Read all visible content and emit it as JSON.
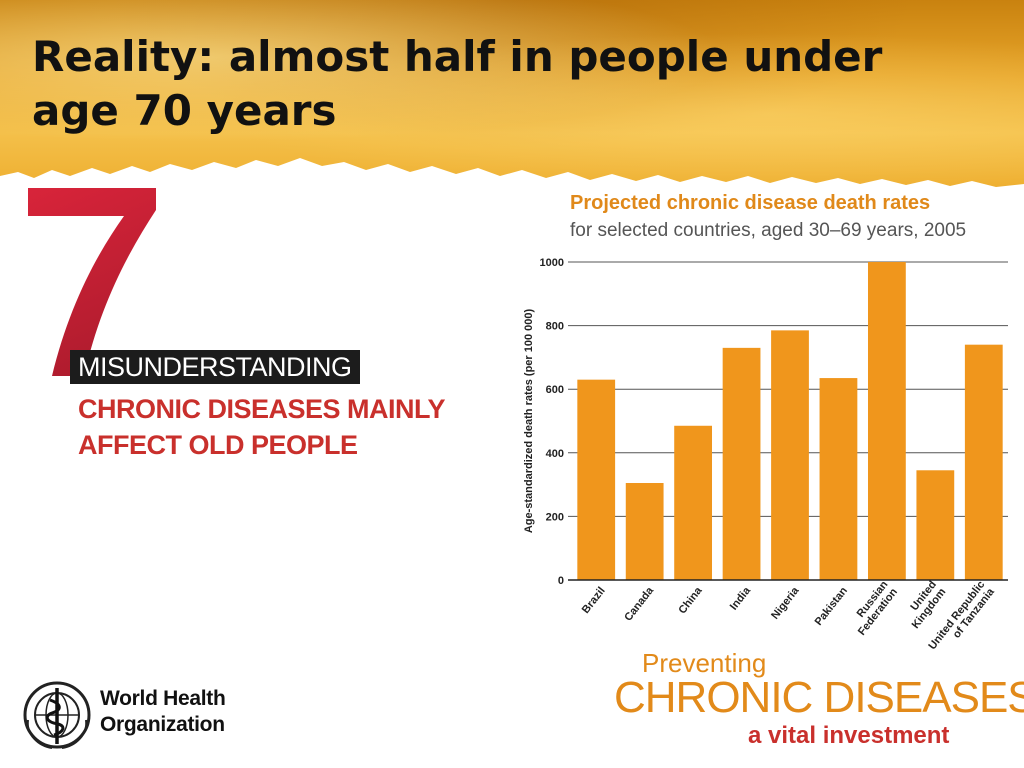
{
  "slide": {
    "title": "Reality: almost half  in people under age 70 years"
  },
  "misunderstanding": {
    "number": "7",
    "label": "MISUNDERSTANDING",
    "myth_line1": "CHRONIC DISEASES MAINLY",
    "myth_line2": "AFFECT OLD PEOPLE"
  },
  "footer": {
    "who_line1": "World Health",
    "who_line2": "Organization",
    "campaign_line1": "Preventing",
    "campaign_line2": "CHRONIC DISEASES",
    "campaign_line3": "a vital investment"
  },
  "colors": {
    "bar": "#f0961c",
    "title_orange": "#e0891a",
    "myth_red": "#c9302c",
    "header_gold": "#e7a52a"
  },
  "chart_data": {
    "type": "bar",
    "title": "Projected chronic disease death rates",
    "subtitle": "for selected countries, aged 30–69 years, 2005",
    "xlabel": "",
    "ylabel": "Age-standardized death rates (per 100 000)",
    "ylim": [
      0,
      1000
    ],
    "yticks": [
      0,
      200,
      400,
      600,
      800,
      1000
    ],
    "grid": true,
    "categories": [
      "Brazil",
      "Canada",
      "China",
      "India",
      "Nigeria",
      "Pakistan",
      "Russian Federation",
      "United Kingdom",
      "United Republic of Tanzania"
    ],
    "category_lines": [
      [
        "Brazil"
      ],
      [
        "Canada"
      ],
      [
        "China"
      ],
      [
        "India"
      ],
      [
        "Nigeria"
      ],
      [
        "Pakistan"
      ],
      [
        "Russian",
        "Federation"
      ],
      [
        "United",
        "Kingdom"
      ],
      [
        "United Republic",
        "of Tanzania"
      ]
    ],
    "values": [
      630,
      305,
      485,
      730,
      785,
      635,
      1000,
      345,
      740
    ]
  }
}
